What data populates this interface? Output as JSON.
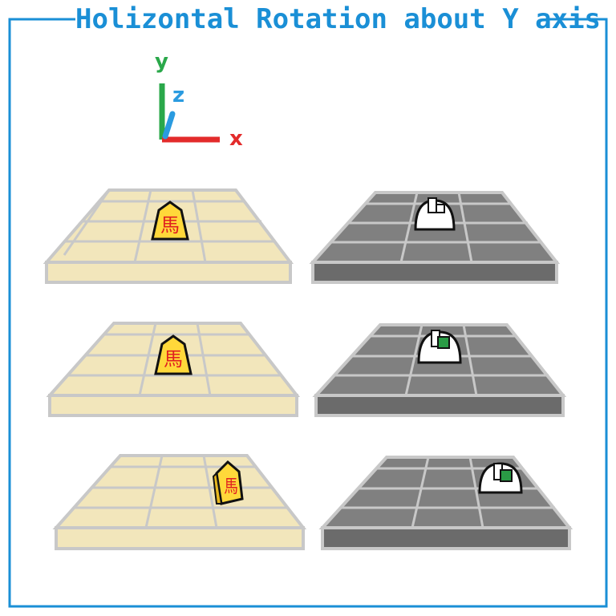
{
  "title": "Holizontal Rotation about Y axis",
  "axes": {
    "x": "x",
    "y": "y",
    "z": "z"
  },
  "piece_kanji": "馬",
  "colors": {
    "frame": "#1a8fd6",
    "axis_x": "#e32b2b",
    "axis_y": "#2aa84a",
    "axis_z": "#2a9be0",
    "board_light": "#f2e6bb",
    "board_dark": "#6b6b6b",
    "piece_yellow": "#ffd83a",
    "piece_text": "#e02020",
    "marker_green": "#2a9b45"
  },
  "rows": [
    {
      "left": "shogi-board-with-horse-piece-facing",
      "right": "gray-board-white-dome-white-marker"
    },
    {
      "left": "shogi-board-with-horse-piece-facing",
      "right": "gray-board-white-dome-green-marker"
    },
    {
      "left": "shogi-board-with-horse-piece-rotated",
      "right": "gray-board-white-dome-green-marker-right"
    }
  ]
}
